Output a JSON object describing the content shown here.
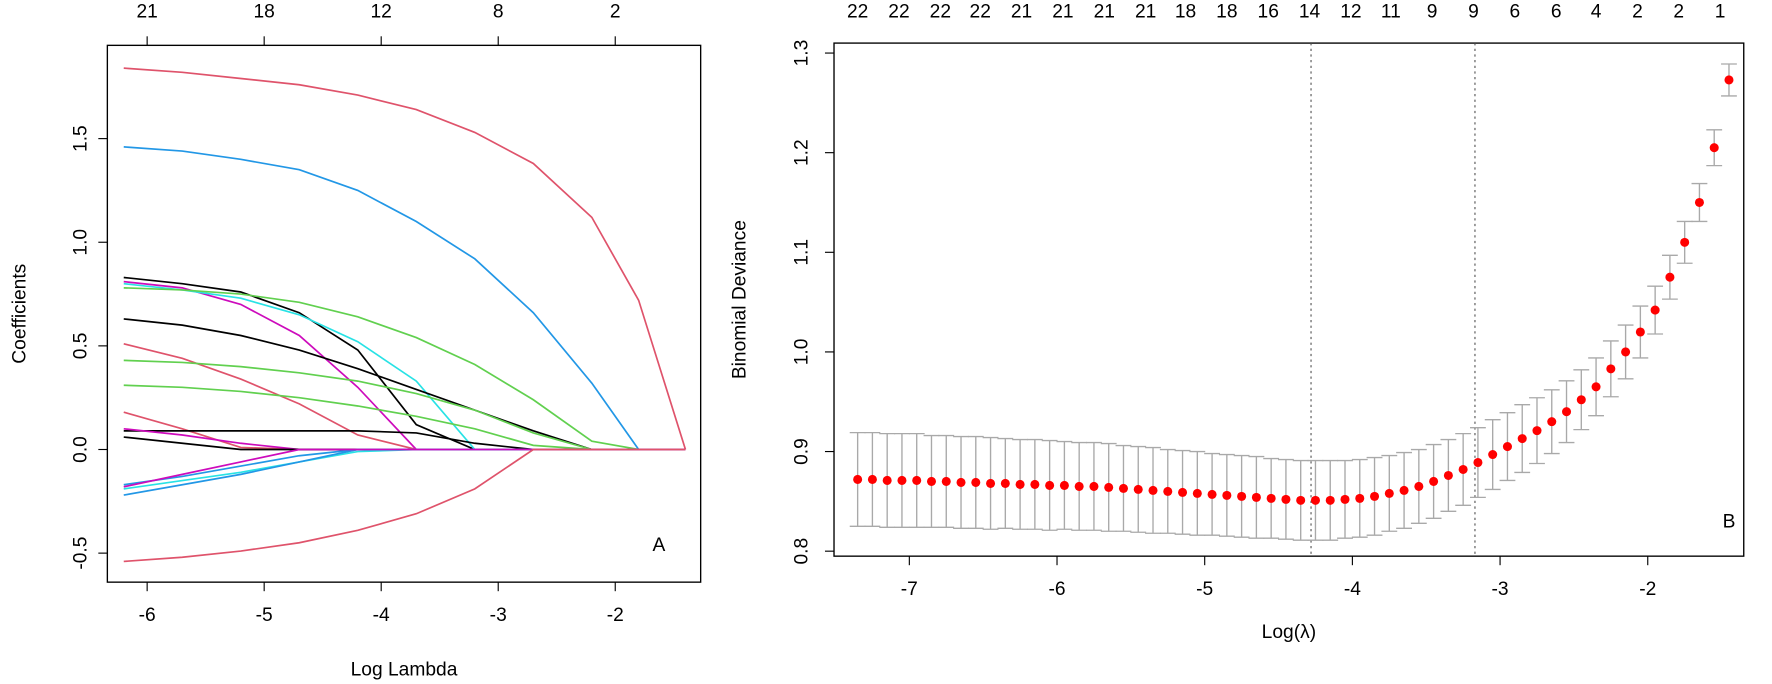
{
  "chart_data": [
    {
      "type": "line",
      "x_label": "Log Lambda",
      "y_label": "Coefficients",
      "annotation": "A",
      "xlim": [
        -6.34,
        -1.27
      ],
      "ylim": [
        -0.64,
        1.95
      ],
      "xticks": [
        -6,
        -5,
        -4,
        -3,
        -2
      ],
      "yticks": [
        -0.5,
        {
          "value": 0,
          "label": "0.0"
        },
        0.5,
        {
          "value": 1,
          "label": "1.0"
        },
        1.5
      ],
      "top_ticks": [
        {
          "value": -6,
          "label": "21"
        },
        {
          "value": -5,
          "label": "18"
        },
        {
          "value": -4,
          "label": "12"
        },
        {
          "value": -3,
          "label": "8"
        },
        {
          "value": -2,
          "label": "2"
        }
      ],
      "x": [
        -6.2,
        -5.7,
        -5.2,
        -4.7,
        -4.2,
        -3.7,
        -3.2,
        -2.7,
        -2.2,
        -1.8,
        -1.4
      ],
      "series": [
        {
          "color": "#df536b",
          "values": [
            1.84,
            1.82,
            1.79,
            1.76,
            1.71,
            1.64,
            1.53,
            1.38,
            1.12,
            0.72,
            0
          ]
        },
        {
          "color": "#2297e6",
          "values": [
            1.46,
            1.44,
            1.4,
            1.35,
            1.25,
            1.1,
            0.92,
            0.66,
            0.32,
            0,
            0
          ]
        },
        {
          "color": "#000000",
          "values": [
            0.83,
            0.8,
            0.76,
            0.66,
            0.48,
            0.12,
            0,
            0,
            0,
            0,
            0
          ]
        },
        {
          "color": "#cd0bbc",
          "values": [
            0.81,
            0.78,
            0.7,
            0.55,
            0.3,
            0,
            0,
            0,
            0,
            0,
            0
          ]
        },
        {
          "color": "#28e2e5",
          "values": [
            0.8,
            0.77,
            0.73,
            0.65,
            0.52,
            0.33,
            0,
            0,
            0,
            0,
            0
          ]
        },
        {
          "color": "#61d04f",
          "values": [
            0.78,
            0.77,
            0.75,
            0.71,
            0.64,
            0.54,
            0.41,
            0.24,
            0.04,
            0,
            0
          ]
        },
        {
          "color": "#000000",
          "values": [
            0.63,
            0.6,
            0.55,
            0.48,
            0.39,
            0.29,
            0.19,
            0.09,
            0,
            0,
            0
          ]
        },
        {
          "color": "#df536b",
          "values": [
            0.51,
            0.44,
            0.34,
            0.22,
            0.07,
            0,
            0,
            0,
            0,
            0,
            0
          ]
        },
        {
          "color": "#61d04f",
          "values": [
            0.43,
            0.42,
            0.4,
            0.37,
            0.33,
            0.27,
            0.19,
            0.08,
            0,
            0,
            0
          ]
        },
        {
          "color": "#61d04f",
          "values": [
            0.31,
            0.3,
            0.28,
            0.25,
            0.21,
            0.16,
            0.1,
            0.02,
            0,
            0,
            0
          ]
        },
        {
          "color": "#df536b",
          "values": [
            0.18,
            0.1,
            0.01,
            0,
            0,
            0,
            0,
            0,
            0,
            0,
            0
          ]
        },
        {
          "color": "#000000",
          "values": [
            0.09,
            0.09,
            0.09,
            0.09,
            0.09,
            0.08,
            0.03,
            0,
            0,
            0,
            0
          ]
        },
        {
          "color": "#cd0bbc",
          "values": [
            0.1,
            0.07,
            0.03,
            0,
            0,
            0,
            0,
            0,
            0,
            0,
            0
          ]
        },
        {
          "color": "#000000",
          "values": [
            0.06,
            0.03,
            0,
            0,
            0,
            0,
            0,
            0,
            0,
            0,
            0
          ]
        },
        {
          "color": "#2297e6",
          "values": [
            -0.17,
            -0.13,
            -0.08,
            -0.03,
            0,
            0,
            0,
            0,
            0,
            0,
            0
          ]
        },
        {
          "color": "#28e2e5",
          "values": [
            -0.19,
            -0.15,
            -0.11,
            -0.06,
            -0.01,
            0,
            0,
            0,
            0,
            0,
            0
          ]
        },
        {
          "color": "#2297e6",
          "values": [
            -0.22,
            -0.17,
            -0.12,
            -0.06,
            0,
            0,
            0,
            0,
            0,
            0,
            0
          ]
        },
        {
          "color": "#cd0bbc",
          "values": [
            -0.18,
            -0.12,
            -0.06,
            0,
            0,
            0,
            0,
            0,
            0,
            0,
            0
          ]
        },
        {
          "color": "#df536b",
          "values": [
            -0.54,
            -0.52,
            -0.49,
            -0.45,
            -0.39,
            -0.31,
            -0.19,
            0,
            0,
            0,
            0
          ]
        }
      ]
    },
    {
      "type": "errorbar",
      "x_label": "Log(λ)",
      "y_label": "Binomial Deviance",
      "annotation": "B",
      "xlim": [
        -7.51,
        -1.35
      ],
      "ylim": [
        0.795,
        1.31
      ],
      "xticks": [
        -7,
        -6,
        -5,
        -4,
        -3,
        -2
      ],
      "yticks": [
        0.8,
        0.9,
        {
          "value": 1,
          "label": "1.0"
        },
        1.1,
        1.2,
        1.3
      ],
      "top_ticks": [
        {
          "value": -7.35,
          "label": "22"
        },
        {
          "value": -7.07,
          "label": "22"
        },
        {
          "value": -6.79,
          "label": "22"
        },
        {
          "value": -6.52,
          "label": "22"
        },
        {
          "value": -6.24,
          "label": "21"
        },
        {
          "value": -5.96,
          "label": "21"
        },
        {
          "value": -5.68,
          "label": "21"
        },
        {
          "value": -5.4,
          "label": "21"
        },
        {
          "value": -5.13,
          "label": "18"
        },
        {
          "value": -4.85,
          "label": "18"
        },
        {
          "value": -4.57,
          "label": "16"
        },
        {
          "value": -4.29,
          "label": "14"
        },
        {
          "value": -4.01,
          "label": "12"
        },
        {
          "value": -3.74,
          "label": "11"
        },
        {
          "value": -3.46,
          "label": "9"
        },
        {
          "value": -3.18,
          "label": "9"
        },
        {
          "value": -2.9,
          "label": "6"
        },
        {
          "value": -2.62,
          "label": "6"
        },
        {
          "value": -2.35,
          "label": "4"
        },
        {
          "value": -2.07,
          "label": "2"
        },
        {
          "value": -1.79,
          "label": "2"
        },
        {
          "value": -1.51,
          "label": "1"
        }
      ],
      "vlines": [
        -4.28,
        -3.17
      ],
      "x": [
        -7.35,
        -7.25,
        -7.15,
        -7.05,
        -6.95,
        -6.85,
        -6.75,
        -6.65,
        -6.55,
        -6.45,
        -6.35,
        -6.25,
        -6.15,
        -6.05,
        -5.95,
        -5.85,
        -5.75,
        -5.65,
        -5.55,
        -5.45,
        -5.35,
        -5.25,
        -5.15,
        -5.05,
        -4.95,
        -4.85,
        -4.75,
        -4.65,
        -4.55,
        -4.45,
        -4.35,
        -4.25,
        -4.15,
        -4.05,
        -3.95,
        -3.85,
        -3.75,
        -3.65,
        -3.55,
        -3.45,
        -3.35,
        -3.25,
        -3.15,
        -3.05,
        -2.95,
        -2.85,
        -2.75,
        -2.65,
        -2.55,
        -2.45,
        -2.35,
        -2.25,
        -2.15,
        -2.05,
        -1.95,
        -1.85,
        -1.75,
        -1.65,
        -1.55,
        -1.45
      ],
      "series": [
        {
          "color": "#ff0000",
          "error_color": "#a9a9a9",
          "values": [
            0.872,
            0.872,
            0.871,
            0.871,
            0.871,
            0.87,
            0.87,
            0.869,
            0.869,
            0.868,
            0.868,
            0.867,
            0.867,
            0.866,
            0.866,
            0.865,
            0.865,
            0.864,
            0.863,
            0.862,
            0.861,
            0.86,
            0.859,
            0.858,
            0.857,
            0.856,
            0.855,
            0.854,
            0.853,
            0.852,
            0.851,
            0.851,
            0.851,
            0.852,
            0.853,
            0.855,
            0.858,
            0.861,
            0.865,
            0.87,
            0.876,
            0.882,
            0.889,
            0.897,
            0.905,
            0.913,
            0.921,
            0.93,
            0.94,
            0.952,
            0.965,
            0.983,
            1.0,
            1.02,
            1.042,
            1.075,
            1.11,
            1.15,
            1.205,
            1.273
          ],
          "errors": [
            0.047,
            0.047,
            0.047,
            0.047,
            0.047,
            0.046,
            0.046,
            0.046,
            0.046,
            0.046,
            0.045,
            0.045,
            0.045,
            0.045,
            0.044,
            0.044,
            0.044,
            0.044,
            0.043,
            0.043,
            0.043,
            0.042,
            0.042,
            0.042,
            0.041,
            0.041,
            0.041,
            0.041,
            0.04,
            0.04,
            0.04,
            0.04,
            0.04,
            0.039,
            0.039,
            0.039,
            0.038,
            0.038,
            0.037,
            0.037,
            0.036,
            0.036,
            0.035,
            0.035,
            0.034,
            0.034,
            0.033,
            0.032,
            0.031,
            0.03,
            0.029,
            0.028,
            0.027,
            0.026,
            0.024,
            0.022,
            0.021,
            0.019,
            0.018,
            0.016
          ]
        }
      ]
    }
  ]
}
